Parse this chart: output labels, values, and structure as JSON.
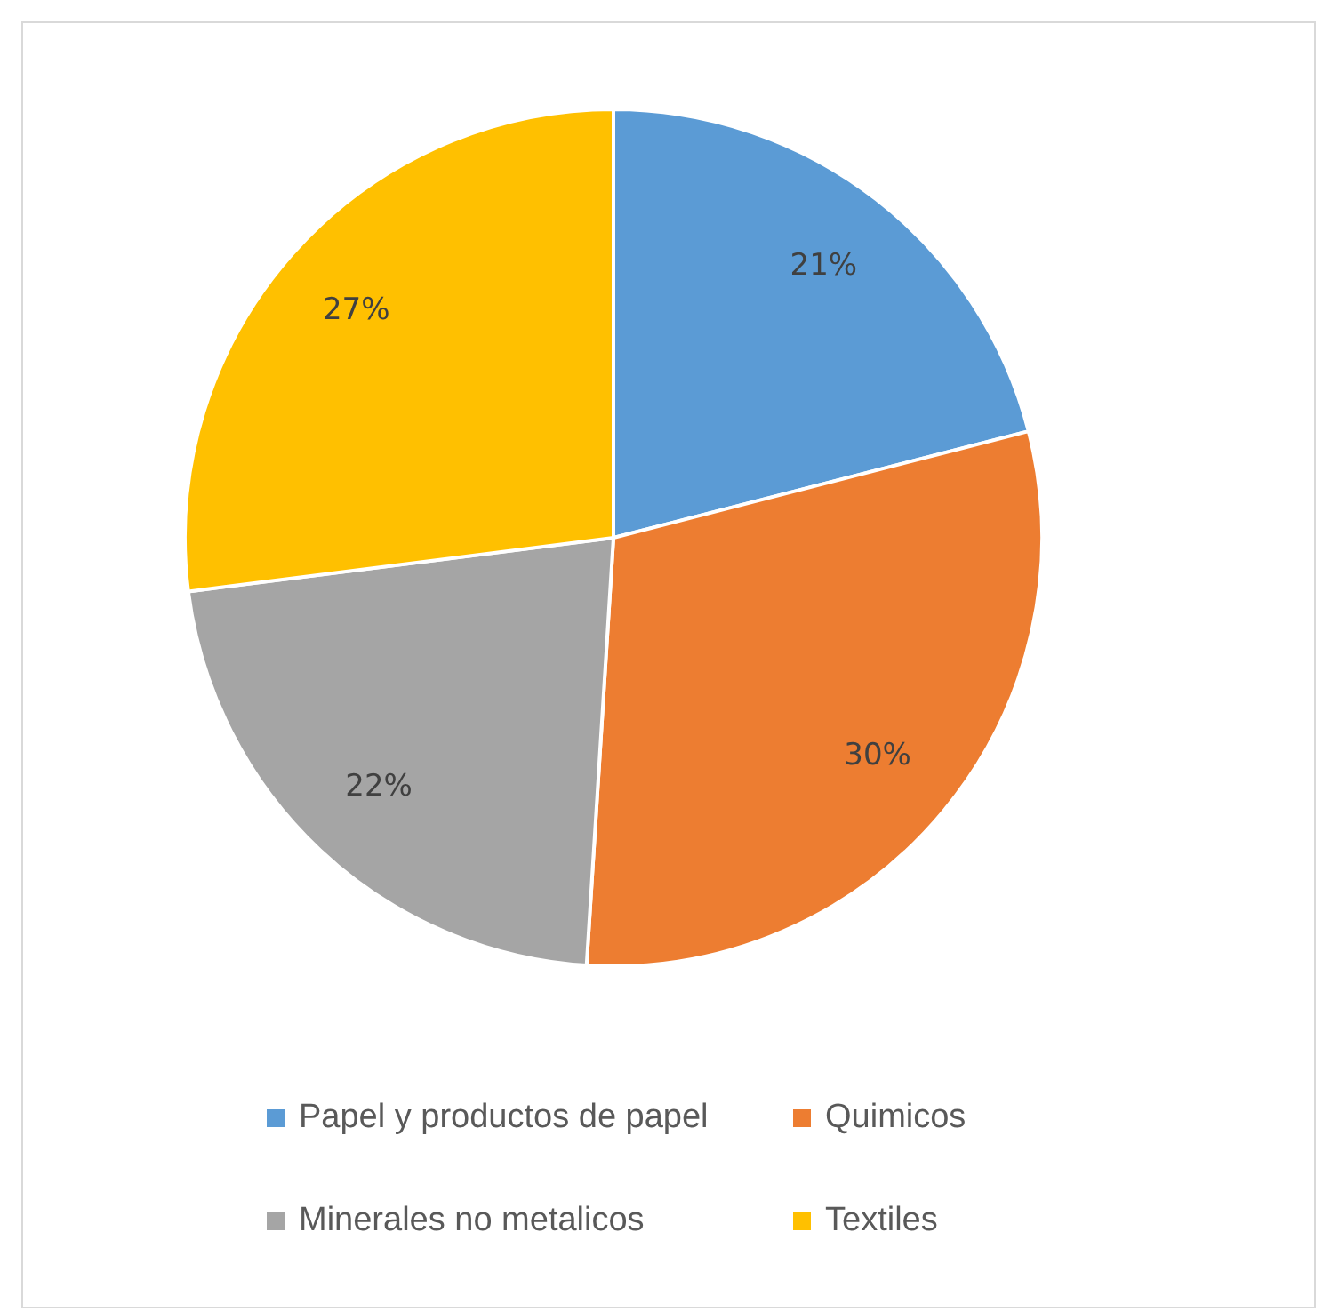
{
  "chart_data": {
    "type": "pie",
    "categories": [
      "Papel y productos de papel",
      "Quimicos",
      "Minerales no metalicos",
      "Textiles"
    ],
    "values": [
      21,
      30,
      22,
      27
    ],
    "colors": [
      "#5b9bd5",
      "#ed7d31",
      "#a5a5a5",
      "#ffc000"
    ],
    "value_labels": [
      "21%",
      "30%",
      "22%",
      "27%"
    ],
    "legend": "bottom"
  }
}
